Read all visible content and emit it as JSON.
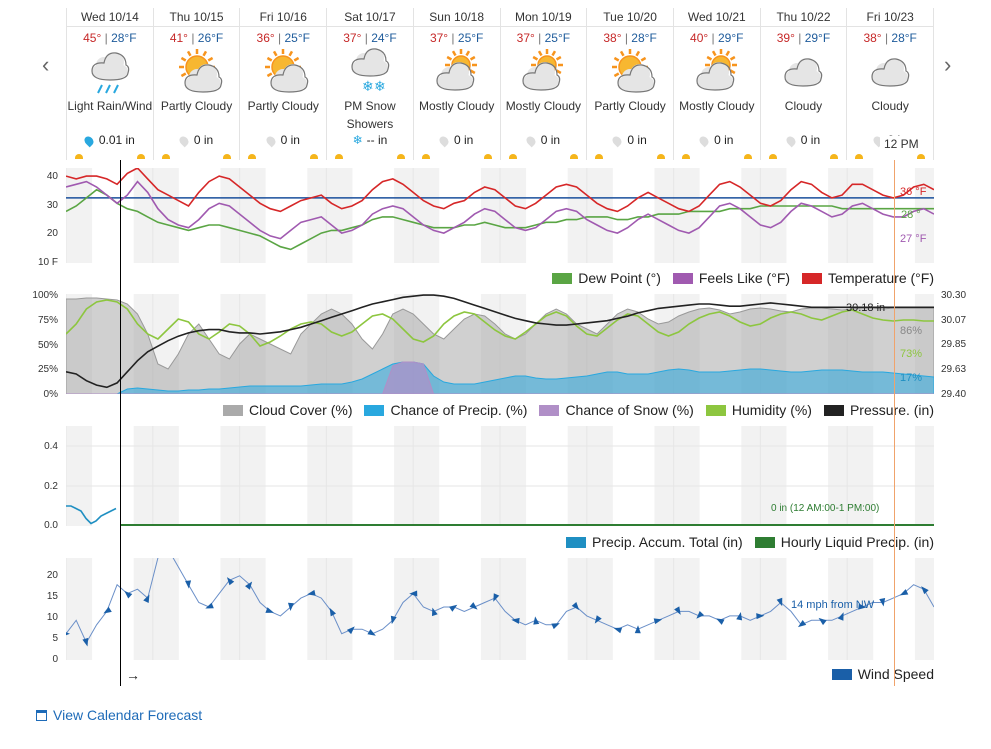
{
  "days": [
    {
      "date": "Wed 10/14",
      "hi": "45°",
      "lo": "28°F",
      "cond": "Light Rain/Wind",
      "icon": "rain-cloud-icon",
      "precip": "0.01 in",
      "wet": true
    },
    {
      "date": "Thu 10/15",
      "hi": "41°",
      "lo": "26°F",
      "cond": "Partly Cloudy",
      "icon": "partly-cloudy-icon",
      "precip": "0 in",
      "wet": false
    },
    {
      "date": "Fri 10/16",
      "hi": "36°",
      "lo": "25°F",
      "cond": "Partly Cloudy",
      "icon": "partly-cloudy-icon",
      "precip": "0 in",
      "wet": false
    },
    {
      "date": "Sat 10/17",
      "hi": "37°",
      "lo": "24°F",
      "cond": "PM Snow Showers",
      "icon": "snow-cloud-icon",
      "precip": "-- in",
      "wet": false,
      "snow": true
    },
    {
      "date": "Sun 10/18",
      "hi": "37°",
      "lo": "25°F",
      "cond": "Mostly Cloudy",
      "icon": "mostly-cloudy-icon",
      "precip": "0 in",
      "wet": false
    },
    {
      "date": "Mon 10/19",
      "hi": "37°",
      "lo": "25°F",
      "cond": "Mostly Cloudy",
      "icon": "mostly-cloudy-icon",
      "precip": "0 in",
      "wet": false
    },
    {
      "date": "Tue 10/20",
      "hi": "38°",
      "lo": "28°F",
      "cond": "Partly Cloudy",
      "icon": "partly-cloudy-icon",
      "precip": "0 in",
      "wet": false
    },
    {
      "date": "Wed 10/21",
      "hi": "40°",
      "lo": "29°F",
      "cond": "Mostly Cloudy",
      "icon": "mostly-cloudy-icon",
      "precip": "0 in",
      "wet": false
    },
    {
      "date": "Thu 10/22",
      "hi": "39°",
      "lo": "29°F",
      "cond": "Cloudy",
      "icon": "cloud-icon",
      "precip": "0 in",
      "wet": false
    },
    {
      "date": "Fri 10/23",
      "hi": "38°",
      "lo": "28°F",
      "cond": "Cloudy",
      "icon": "cloud-icon",
      "precip": "0 in",
      "wet": false
    }
  ],
  "noon_label": "12 PM",
  "temp_chart": {
    "yticks": [
      "40",
      "30",
      "20",
      "10 F"
    ],
    "legend": [
      {
        "name": "Dew Point (°)",
        "color": "#5aa544"
      },
      {
        "name": "Feels Like (°F)",
        "color": "#a05ab0"
      },
      {
        "name": "Temperature (°F)",
        "color": "#d62728"
      }
    ],
    "labels": {
      "temp": "36 °F",
      "dew": "28 °",
      "feels": "27 °F"
    },
    "temperature": [
      40,
      39,
      40,
      40,
      39,
      37,
      41,
      43,
      39,
      35,
      33,
      31,
      29,
      34,
      38,
      40,
      39,
      36,
      33,
      30,
      28,
      27,
      29,
      31,
      32,
      33,
      30,
      28,
      29,
      31,
      35,
      38,
      39,
      37,
      34,
      31,
      29,
      28,
      30,
      31,
      34,
      36,
      35,
      32,
      29,
      28,
      30,
      33,
      36,
      37,
      36,
      33,
      30,
      28,
      27,
      29,
      32,
      34,
      32,
      30,
      28,
      27,
      29,
      33,
      37,
      38,
      36,
      33,
      30,
      29,
      31,
      35,
      38,
      37,
      34,
      32,
      33,
      37,
      37,
      35,
      33,
      32,
      33,
      36,
      37,
      35
    ],
    "feels": [
      36,
      37,
      38,
      36,
      33,
      30,
      33,
      38,
      34,
      28,
      24,
      22,
      21,
      24,
      28,
      30,
      29,
      26,
      23,
      20,
      18,
      17,
      20,
      23,
      24,
      25,
      22,
      19,
      20,
      22,
      26,
      28,
      29,
      28,
      25,
      22,
      20,
      19,
      21,
      23,
      26,
      28,
      27,
      24,
      21,
      20,
      21,
      24,
      27,
      28,
      27,
      24,
      22,
      20,
      19,
      21,
      24,
      26,
      24,
      22,
      20,
      19,
      21,
      25,
      29,
      30,
      28,
      25,
      22,
      21,
      23,
      27,
      30,
      29,
      27,
      25,
      26,
      29,
      30,
      28,
      26,
      25,
      25,
      27,
      28,
      26
    ],
    "dew": [
      27,
      29,
      32,
      35,
      33,
      30,
      28,
      27,
      25,
      23,
      22,
      21,
      20,
      21,
      22,
      22,
      21,
      20,
      19,
      18,
      16,
      14,
      13,
      15,
      17,
      19,
      20,
      20,
      21,
      22,
      24,
      25,
      25,
      24,
      23,
      22,
      21,
      21,
      21,
      22,
      22,
      23,
      22,
      21,
      21,
      21,
      22,
      23,
      23,
      24,
      24,
      25,
      25,
      25,
      24,
      24,
      25,
      25,
      26,
      26,
      26,
      27,
      27,
      27,
      27,
      28,
      28,
      28,
      29,
      29,
      29,
      29,
      29,
      29,
      29,
      29,
      28,
      28,
      28,
      28,
      28,
      28,
      28,
      28,
      28,
      28
    ],
    "ref_line": 32
  },
  "cloud_chart": {
    "yticks_left": [
      "100%",
      "75%",
      "50%",
      "25%",
      "0%"
    ],
    "yticks_right": [
      "30.30",
      "30.07",
      "29.85",
      "29.63",
      "29.40"
    ],
    "legend": [
      {
        "name": "Cloud Cover (%)",
        "color": "#aaaaaa"
      },
      {
        "name": "Chance of Precip. (%)",
        "color": "#29a8df"
      },
      {
        "name": "Chance of Snow (%)",
        "color": "#b08fc7"
      },
      {
        "name": "Humidity (%)",
        "color": "#8dc63f"
      },
      {
        "name": "Pressure. (in)",
        "color": "#222222"
      }
    ],
    "labels": {
      "pressure": "30.18 in",
      "cloud": "86%",
      "humidity": "73%",
      "precip": "17%"
    },
    "cloud": [
      95,
      95,
      96,
      96,
      95,
      94,
      90,
      80,
      60,
      30,
      25,
      40,
      60,
      70,
      55,
      40,
      35,
      50,
      60,
      55,
      50,
      45,
      40,
      60,
      70,
      80,
      85,
      80,
      70,
      55,
      45,
      60,
      80,
      85,
      80,
      70,
      60,
      55,
      65,
      75,
      80,
      78,
      70,
      60,
      55,
      60,
      70,
      80,
      85,
      80,
      70,
      65,
      60,
      70,
      80,
      85,
      82,
      75,
      70,
      72,
      78,
      82,
      85,
      86,
      84,
      80,
      82,
      85,
      86,
      85,
      83,
      82,
      85,
      86,
      86,
      85,
      84,
      85,
      86,
      86,
      85,
      86,
      86,
      86,
      86,
      86
    ],
    "precip": [
      0,
      0,
      0,
      0,
      0,
      0,
      5,
      6,
      5,
      4,
      3,
      3,
      4,
      4,
      5,
      5,
      6,
      7,
      8,
      8,
      8,
      8,
      8,
      8,
      9,
      10,
      10,
      10,
      12,
      15,
      20,
      25,
      30,
      32,
      32,
      30,
      18,
      12,
      10,
      10,
      10,
      12,
      14,
      16,
      18,
      18,
      16,
      15,
      15,
      16,
      17,
      18,
      20,
      22,
      22,
      20,
      20,
      20,
      22,
      24,
      25,
      24,
      22,
      22,
      22,
      23,
      24,
      25,
      25,
      24,
      23,
      22,
      22,
      23,
      24,
      24,
      24,
      23,
      22,
      22,
      22,
      21,
      20,
      19,
      18,
      17
    ],
    "snow": [
      0,
      0,
      0,
      0,
      0,
      0,
      0,
      0,
      0,
      0,
      0,
      0,
      0,
      0,
      0,
      0,
      0,
      0,
      0,
      0,
      0,
      0,
      0,
      0,
      0,
      0,
      0,
      0,
      0,
      0,
      0,
      0,
      28,
      32,
      32,
      30,
      0,
      0,
      0,
      0,
      0,
      0,
      0,
      0,
      0,
      0,
      0,
      0,
      0,
      0,
      0,
      0,
      0,
      0,
      0,
      0,
      0,
      0,
      0,
      0,
      0,
      0,
      0,
      0,
      0,
      0,
      0,
      0,
      0,
      0,
      0,
      0,
      0,
      0,
      0,
      0,
      0,
      0,
      0,
      0,
      0,
      0,
      0,
      0,
      0,
      0
    ],
    "humidity": [
      60,
      70,
      85,
      92,
      94,
      92,
      85,
      70,
      60,
      55,
      65,
      75,
      72,
      60,
      55,
      62,
      70,
      68,
      60,
      48,
      52,
      58,
      65,
      70,
      72,
      70,
      62,
      58,
      62,
      70,
      78,
      80,
      75,
      65,
      55,
      52,
      58,
      70,
      78,
      82,
      80,
      72,
      64,
      58,
      55,
      62,
      70,
      78,
      82,
      78,
      68,
      60,
      58,
      66,
      74,
      80,
      78,
      70,
      62,
      58,
      62,
      70,
      76,
      80,
      82,
      78,
      72,
      68,
      70,
      76,
      80,
      82,
      80,
      76,
      74,
      78,
      82,
      84,
      80,
      76,
      74,
      73,
      74,
      74,
      73,
      73
    ],
    "pressure": [
      29.6,
      29.58,
      29.52,
      29.48,
      29.46,
      29.5,
      29.6,
      29.7,
      29.78,
      29.83,
      29.88,
      29.92,
      29.95,
      29.97,
      29.98,
      29.98,
      29.96,
      29.95,
      29.95,
      29.94,
      29.95,
      29.96,
      29.98,
      30.0,
      30.03,
      30.06,
      30.09,
      30.12,
      30.15,
      30.18,
      30.21,
      30.23,
      30.25,
      30.27,
      30.28,
      30.29,
      30.29,
      30.28,
      30.26,
      30.23,
      30.2,
      30.17,
      30.14,
      30.11,
      30.08,
      30.06,
      30.04,
      30.03,
      30.02,
      30.02,
      30.03,
      30.04,
      30.05,
      30.06,
      30.08,
      30.1,
      30.13,
      30.15,
      30.17,
      30.18,
      30.19,
      30.2,
      30.21,
      30.21,
      30.2,
      30.19,
      30.19,
      30.2,
      30.21,
      30.22,
      30.21,
      30.2,
      30.19,
      30.18,
      30.18,
      30.18,
      30.18,
      30.18,
      30.18,
      30.18,
      30.18,
      30.18,
      30.18,
      30.18,
      30.18,
      30.18
    ],
    "pressure_range": [
      29.4,
      30.3
    ]
  },
  "accum_chart": {
    "yticks": [
      "0.4",
      "0.2",
      "0.0"
    ],
    "legend": [
      {
        "name": "Precip. Accum. Total (in)",
        "color": "#1f8fc2"
      },
      {
        "name": "Hourly Liquid Precip. (in)",
        "color": "#2e7d32"
      }
    ],
    "label": "0 in (12 AM:00-1 PM:00)",
    "accum": [
      0.08,
      0.08,
      0.07,
      0.06,
      0.03,
      0.01,
      0.02,
      0.04,
      0.05,
      0.06,
      0.07
    ]
  },
  "wind_chart": {
    "yticks": [
      "20",
      "15",
      "10",
      "5",
      "0"
    ],
    "legend": [
      {
        "name": "Wind Speed",
        "color": "#1a5fa8"
      }
    ],
    "label": "14 mph from NW",
    "arrow_label": "→",
    "speed": [
      5,
      8,
      3,
      7,
      10,
      16,
      14,
      15,
      13,
      22,
      24,
      20,
      16,
      12,
      11,
      14,
      17,
      18,
      16,
      12,
      10,
      9,
      11,
      13,
      14,
      13,
      10,
      5,
      6,
      6,
      5,
      6,
      8,
      12,
      14,
      11,
      10,
      11,
      11,
      10,
      11,
      12,
      13,
      10,
      8,
      7,
      8,
      7,
      7,
      10,
      11,
      9,
      8,
      7,
      6,
      7,
      6,
      7,
      8,
      9,
      10,
      10,
      9,
      9,
      8,
      9,
      9,
      8,
      9,
      10,
      12,
      10,
      7,
      8,
      8,
      8,
      9,
      10,
      11,
      12,
      12,
      13,
      14,
      16,
      15,
      11
    ]
  },
  "calendar_link": "View Calendar Forecast"
}
